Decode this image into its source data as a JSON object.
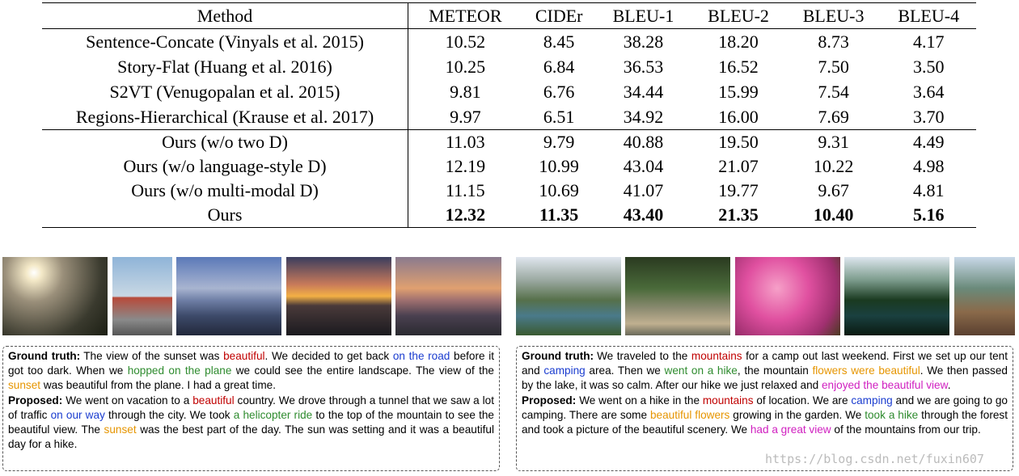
{
  "table": {
    "header": [
      "Method",
      "METEOR",
      "CIDEr",
      "BLEU-1",
      "BLEU-2",
      "BLEU-3",
      "BLEU-4"
    ],
    "rows": [
      [
        "Sentence-Concate (Vinyals et al. 2015)",
        "10.52",
        "8.45",
        "38.28",
        "18.20",
        "8.73",
        "4.17"
      ],
      [
        "Story-Flat (Huang et al. 2016)",
        "10.25",
        "6.84",
        "36.53",
        "16.52",
        "7.50",
        "3.50"
      ],
      [
        "S2VT (Venugopalan et al. 2015)",
        "9.81",
        "6.76",
        "34.44",
        "15.99",
        "7.54",
        "3.64"
      ],
      [
        "Regions-Hierarchical (Krause et al. 2017)",
        "9.97",
        "6.51",
        "34.92",
        "16.00",
        "7.69",
        "3.70"
      ],
      [
        "Ours (w/o two D)",
        "11.03",
        "9.79",
        "40.88",
        "19.50",
        "9.31",
        "4.49"
      ],
      [
        "Ours (w/o language-style D)",
        "12.19",
        "10.99",
        "43.04",
        "21.07",
        "10.22",
        "4.98"
      ],
      [
        "Ours (w/o multi-modal D)",
        "11.15",
        "10.69",
        "41.07",
        "19.77",
        "9.67",
        "4.81"
      ],
      [
        "Ours",
        "12.32",
        "11.35",
        "43.40",
        "21.35",
        "10.40",
        "5.16"
      ]
    ]
  },
  "stories": [
    {
      "ground_truth": {
        "label": "Ground truth:",
        "segments": [
          {
            "text": "The view of the sunset was "
          },
          {
            "text": "beautiful",
            "color": "#c00000"
          },
          {
            "text": ". We decided to get back "
          },
          {
            "text": "on the road",
            "color": "#1a3ccf"
          },
          {
            "text": " before it got too dark. When we "
          },
          {
            "text": "hopped on the plane",
            "color": "#2e8b2e"
          },
          {
            "text": " we could see the entire landscape. The view of the "
          },
          {
            "text": "sunset",
            "color": "#e69500"
          },
          {
            "text": " was beautiful from the plane. I had a great time."
          }
        ]
      },
      "proposed": {
        "label": "Proposed:",
        "segments": [
          {
            "text": "We went on vacation to a "
          },
          {
            "text": "beautiful",
            "color": "#c00000"
          },
          {
            "text": " country. We drove through a tunnel that we saw a lot of traffic "
          },
          {
            "text": "on our way",
            "color": "#1a3ccf"
          },
          {
            "text": " through the city. We took "
          },
          {
            "text": "a helicopter ride",
            "color": "#2e8b2e"
          },
          {
            "text": " to the top of the mountain to see the beautiful view. The "
          },
          {
            "text": "sunset",
            "color": "#e69500"
          },
          {
            "text": " was the best part of the day. The sun was setting and it was a beautiful day for a hike."
          }
        ]
      }
    },
    {
      "ground_truth": {
        "label": "Ground truth:",
        "segments": [
          {
            "text": "We traveled to the "
          },
          {
            "text": "mountains",
            "color": "#c00000"
          },
          {
            "text": " for a camp out last weekend. First we set up our tent and "
          },
          {
            "text": "camping",
            "color": "#1a3ccf"
          },
          {
            "text": " area. Then we "
          },
          {
            "text": "went on a hike",
            "color": "#2e8b2e"
          },
          {
            "text": ", the mountain "
          },
          {
            "text": "flowers were beautiful",
            "color": "#e69500"
          },
          {
            "text": ". We then passed by the lake, it was so calm. After our hike we just relaxed and "
          },
          {
            "text": "enjoyed the beautiful view",
            "color": "#d020c0"
          },
          {
            "text": "."
          }
        ]
      },
      "proposed": {
        "label": "Proposed:",
        "segments": [
          {
            "text": "We went on a hike in the "
          },
          {
            "text": "mountains",
            "color": "#c00000"
          },
          {
            "text": " of location. We are "
          },
          {
            "text": "camping",
            "color": "#1a3ccf"
          },
          {
            "text": " and we are going to go camping. There are some "
          },
          {
            "text": "beautiful flowers",
            "color": "#e69500"
          },
          {
            "text": " growing in the garden. We "
          },
          {
            "text": "took a hike",
            "color": "#2e8b2e"
          },
          {
            "text": " through the forest and took a picture of the beautiful scenery. We "
          },
          {
            "text": "had a great view",
            "color": "#d020c0"
          },
          {
            "text": " of the mountains from our trip."
          }
        ]
      }
    }
  ],
  "watermark": "https://blog.csdn.net/fuxin607"
}
